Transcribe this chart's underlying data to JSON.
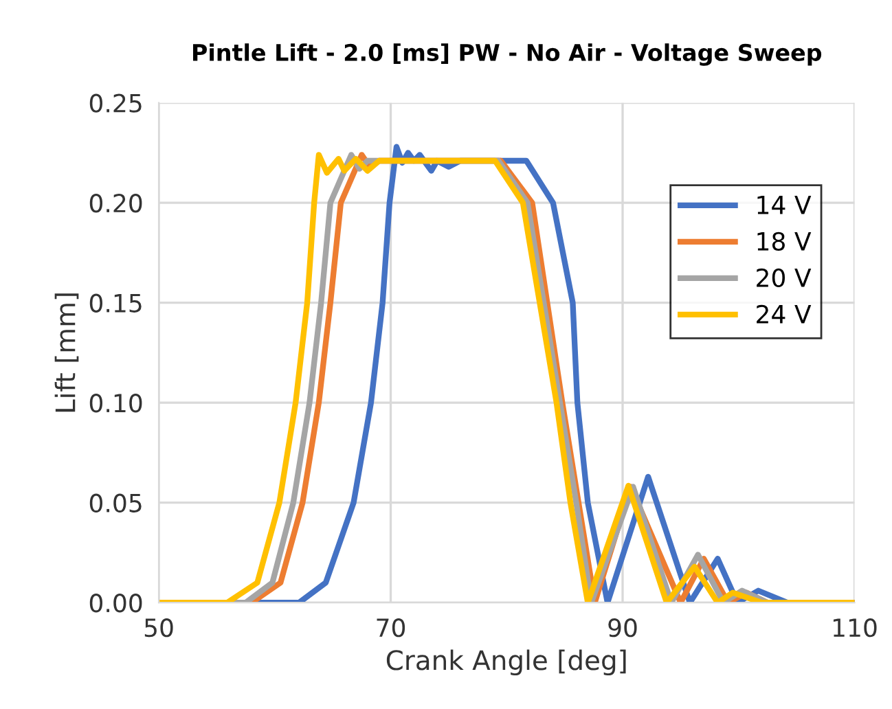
{
  "chart_data": {
    "type": "line",
    "title": "Pintle Lift - 2.0 [ms] PW - No Air - Voltage Sweep",
    "xlabel": "Crank Angle [deg]",
    "ylabel": "Lift [mm]",
    "xlim": [
      50,
      110
    ],
    "xticks": [
      50,
      70,
      90,
      110
    ],
    "ylim": [
      0,
      0.25
    ],
    "yticks": [
      {
        "value": 0,
        "label": "0.00"
      },
      {
        "value": 0.05,
        "label": "0.05"
      },
      {
        "value": 0.1,
        "label": "0.10"
      },
      {
        "value": 0.15,
        "label": "0.15"
      },
      {
        "value": 0.2,
        "label": "0.20"
      },
      {
        "value": 0.25,
        "label": "0.25"
      }
    ],
    "grid": true,
    "legend": "top right",
    "marker": "none",
    "line_style": "solid",
    "series": [
      {
        "name": "14 V",
        "color": "#4472c4",
        "x": [
          50,
          62.1,
          64.4,
          66.8,
          68.3,
          69.3,
          69.9,
          70.5,
          71,
          71.5,
          72,
          72.5,
          73.5,
          74,
          75,
          76,
          81.7,
          84.0,
          85.7,
          86.1,
          87.0,
          88.7,
          92.2,
          95.8,
          98.2,
          99.9,
          101.7,
          104.2,
          110
        ],
        "values": [
          0,
          0,
          0.01,
          0.05,
          0.1,
          0.15,
          0.2,
          0.228,
          0.22,
          0.225,
          0.221,
          0.224,
          0.216,
          0.221,
          0.218,
          0.221,
          0.221,
          0.2,
          0.15,
          0.1,
          0.05,
          0,
          0.063,
          0,
          0.022,
          0,
          0.006,
          0,
          0
        ]
      },
      {
        "name": "18 V",
        "color": "#ed7d31",
        "x": [
          50,
          58.0,
          60.5,
          62.4,
          63.8,
          64.8,
          65.7,
          67.5,
          68.2,
          69,
          79.5,
          82.2,
          84.8,
          86.2,
          87.6,
          90.7,
          95.0,
          97.0,
          99.1,
          100.7,
          102.5,
          110
        ],
        "values": [
          0,
          0,
          0.01,
          0.05,
          0.1,
          0.15,
          0.2,
          0.224,
          0.218,
          0.221,
          0.221,
          0.2,
          0.1,
          0.05,
          0,
          0.058,
          0,
          0.022,
          0,
          0.005,
          0,
          0
        ]
      },
      {
        "name": "20 V",
        "color": "#a5a5a5",
        "x": [
          50,
          57.5,
          59.8,
          61.6,
          63.0,
          64.0,
          64.8,
          66.6,
          67.3,
          68,
          79.3,
          81.8,
          84.6,
          86.0,
          87.3,
          90.9,
          94.2,
          96.5,
          98.7,
          100.3,
          102.5,
          110
        ],
        "values": [
          0,
          0,
          0.01,
          0.05,
          0.1,
          0.15,
          0.2,
          0.224,
          0.217,
          0.221,
          0.221,
          0.2,
          0.1,
          0.05,
          0,
          0.058,
          0,
          0.024,
          0,
          0.006,
          0,
          0
        ]
      },
      {
        "name": "24 V",
        "color": "#ffc000",
        "x": [
          50,
          55.9,
          58.5,
          60.4,
          61.8,
          62.8,
          63.4,
          63.8,
          64.5,
          65.5,
          66,
          67,
          68,
          69,
          79,
          81.4,
          84.3,
          85.5,
          87.0,
          90.5,
          93.8,
          96.2,
          98.2,
          99.5,
          102,
          110
        ],
        "values": [
          0,
          0,
          0.01,
          0.05,
          0.1,
          0.15,
          0.2,
          0.224,
          0.215,
          0.222,
          0.216,
          0.222,
          0.216,
          0.221,
          0.221,
          0.2,
          0.1,
          0.05,
          0,
          0.0585,
          0,
          0.018,
          0,
          0.005,
          0,
          0
        ]
      }
    ]
  }
}
